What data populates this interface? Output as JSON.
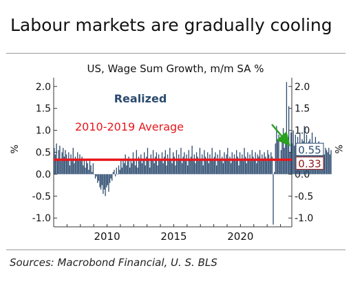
{
  "headline": "Labour markets are gradually cooling",
  "source": "Sources: Macrobond Financial, U. S. BLS",
  "chart_data": {
    "type": "bar",
    "title": "US, Wage Sum Growth, m/m SA %",
    "ylabel": "%",
    "ylabel_right": "%",
    "ylim": [
      -1.2,
      2.2
    ],
    "yticks": [
      -1.0,
      -0.5,
      0.0,
      0.5,
      1.0,
      1.5,
      2.0
    ],
    "ytick_labels": [
      "-1.0",
      "-0.5",
      "0.0",
      "0.5",
      "1.0",
      "1.5",
      "2.0"
    ],
    "xlim": [
      2006.0,
      2023.85
    ],
    "xticks": [
      2010,
      2015,
      2020
    ],
    "xtick_labels": [
      "2010",
      "2015",
      "2020"
    ],
    "grid": false,
    "series": [
      {
        "name": "Realized",
        "color": "#2b4a6e",
        "frequency": "monthly",
        "start": "2006-01",
        "values": [
          0.6,
          0.45,
          0.7,
          0.35,
          0.55,
          0.65,
          0.3,
          0.5,
          0.6,
          0.4,
          0.55,
          0.45,
          0.35,
          0.5,
          0.2,
          0.45,
          0.3,
          0.6,
          0.25,
          0.4,
          0.35,
          0.5,
          0.3,
          0.45,
          0.3,
          0.4,
          0.2,
          0.35,
          0.15,
          0.3,
          0.25,
          0.1,
          0.3,
          0.2,
          0.05,
          0.25,
          0.0,
          -0.1,
          -0.05,
          -0.2,
          -0.15,
          -0.3,
          -0.35,
          -0.25,
          -0.45,
          -0.35,
          -0.5,
          -0.3,
          -0.25,
          -0.4,
          -0.2,
          -0.1,
          -0.15,
          0.05,
          0.1,
          -0.05,
          0.15,
          0.0,
          0.2,
          0.1,
          0.3,
          0.15,
          0.35,
          0.25,
          0.45,
          0.2,
          0.3,
          0.4,
          0.15,
          0.35,
          0.25,
          0.5,
          0.3,
          0.2,
          0.55,
          0.15,
          0.4,
          0.3,
          0.45,
          0.25,
          0.35,
          0.5,
          0.2,
          0.4,
          0.6,
          0.3,
          0.15,
          0.45,
          0.35,
          0.55,
          0.25,
          0.4,
          0.5,
          0.2,
          0.45,
          0.3,
          0.35,
          0.5,
          0.25,
          0.4,
          0.55,
          0.2,
          0.45,
          0.3,
          0.6,
          0.35,
          0.25,
          0.5,
          0.4,
          0.2,
          0.55,
          0.3,
          0.45,
          0.35,
          0.6,
          0.25,
          0.4,
          0.5,
          0.3,
          0.45,
          0.2,
          0.55,
          0.35,
          0.4,
          0.65,
          0.3,
          0.45,
          0.25,
          0.5,
          0.4,
          0.3,
          0.6,
          0.35,
          0.45,
          0.2,
          0.55,
          0.4,
          0.3,
          0.5,
          0.25,
          0.45,
          0.35,
          0.6,
          0.3,
          0.4,
          0.5,
          0.2,
          0.45,
          0.35,
          0.55,
          0.3,
          0.4,
          0.25,
          0.5,
          0.35,
          0.45,
          0.6,
          0.3,
          0.4,
          0.25,
          0.5,
          0.35,
          0.45,
          0.3,
          0.55,
          0.4,
          0.2,
          0.5,
          0.35,
          0.45,
          0.3,
          0.6,
          0.4,
          0.25,
          0.5,
          0.35,
          0.45,
          0.3,
          0.55,
          0.4,
          0.35,
          0.5,
          0.25,
          0.45,
          0.4,
          0.55,
          0.3,
          0.45,
          0.35,
          0.5,
          0.4,
          0.3,
          0.55,
          0.45,
          0.35,
          0.5,
          0.4,
          -1.15,
          0.05,
          0.7,
          1.1,
          0.8,
          0.9,
          0.3,
          0.55,
          0.75,
          1.05,
          0.6,
          0.85,
          2.1,
          0.8,
          1.55,
          0.5,
          0.95,
          0.7,
          1.0,
          0.65,
          0.9,
          0.45,
          0.85,
          0.7,
          0.95,
          0.6,
          0.8,
          0.75,
          1.1,
          0.55,
          0.9,
          0.65,
          0.75,
          0.8,
          0.6,
          0.95,
          0.7,
          0.55,
          0.85,
          0.65,
          0.6,
          0.75,
          0.5,
          0.7,
          0.55,
          0.65,
          0.45,
          0.6,
          0.55,
          0.5,
          0.6,
          0.45,
          0.55
        ]
      }
    ],
    "reference_line": {
      "label": "2010-2019 Average",
      "value": 0.33,
      "color": "#e8161b"
    },
    "annotations": [
      {
        "text": "0.55",
        "value": 0.55,
        "color": "#2b4a6e"
      },
      {
        "text": "0.33",
        "value": 0.33,
        "color": "#8b1a1a"
      }
    ],
    "trend_arrow_color": "#2aa020"
  }
}
